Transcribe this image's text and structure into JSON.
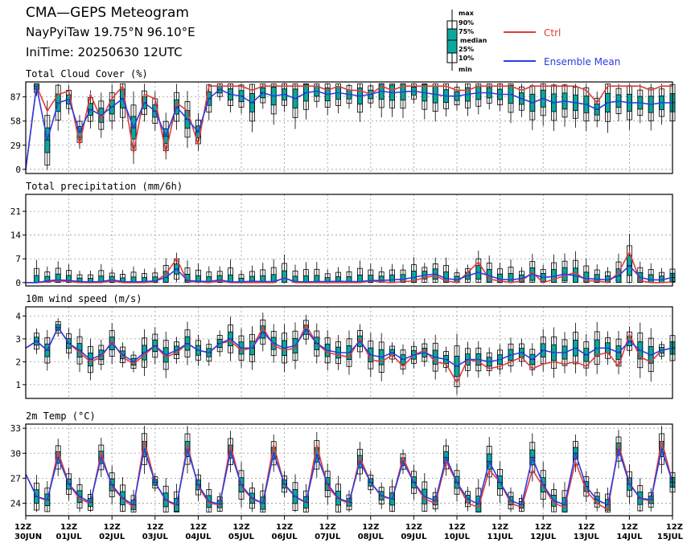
{
  "header": {
    "title": "CMA—GEPS Meteogram",
    "location": "NayPyiTaw 19.75°N 96.10°E",
    "init": "IniTime: 20250630 12UTC"
  },
  "legend": {
    "box_labels": [
      "max",
      "90%",
      "75%",
      "median",
      "25%",
      "10%",
      "min"
    ],
    "ctrl": "Ctrl",
    "mean": "Ensemble Mean"
  },
  "colors": {
    "ctrl": "#e23b3b",
    "mean": "#2a3ee0",
    "box": "#0aa7a0",
    "grid": "#9a9a9a"
  },
  "x_ticks": {
    "hour": [
      "12Z",
      "12Z",
      "12Z",
      "12Z",
      "12Z",
      "12Z",
      "12Z",
      "12Z",
      "12Z",
      "12Z",
      "12Z",
      "12Z",
      "12Z",
      "12Z",
      "12Z",
      "12Z"
    ],
    "date": [
      "30JUN",
      "01JUL",
      "02JUL",
      "03JUL",
      "04JUL",
      "05JUL",
      "06JUL",
      "07JUL",
      "08JUL",
      "09JUL",
      "10JUL",
      "11JUL",
      "12JUL",
      "13JUL",
      "14JUL",
      "15JUL"
    ]
  },
  "chart_data": [
    {
      "type": "boxplot",
      "title": "Total Cloud Cover (%)",
      "ylim": [
        -5,
        105
      ],
      "yticks": [
        0,
        29,
        58,
        87
      ],
      "grid": true,
      "x_range_days": [
        0,
        15
      ],
      "ctrl": [
        0,
        100,
        70,
        90,
        94,
        30,
        90,
        60,
        85,
        100,
        20,
        90,
        85,
        20,
        80,
        70,
        30,
        100,
        100,
        100,
        100,
        95,
        100,
        100,
        100,
        100,
        100,
        100,
        95,
        100,
        95,
        95,
        90,
        100,
        95,
        100,
        100,
        100,
        100,
        100,
        95,
        95,
        100,
        100,
        100,
        100,
        95,
        100,
        100,
        100,
        100,
        100,
        95,
        80,
        100,
        100,
        100,
        100,
        95,
        100,
        100
      ],
      "mean": [
        0,
        100,
        35,
        80,
        84,
        45,
        72,
        65,
        75,
        85,
        50,
        80,
        70,
        40,
        75,
        60,
        45,
        85,
        96,
        90,
        88,
        80,
        92,
        88,
        90,
        85,
        92,
        94,
        90,
        92,
        90,
        88,
        90,
        94,
        92,
        93,
        94,
        92,
        90,
        88,
        88,
        90,
        92,
        92,
        90,
        90,
        85,
        80,
        85,
        80,
        82,
        80,
        78,
        72,
        80,
        82,
        80,
        80,
        78,
        80,
        80
      ]
    },
    {
      "type": "boxplot",
      "title": "Total precipitation (mm/6h)",
      "ylim": [
        -1,
        26
      ],
      "yticks": [
        0,
        7,
        14,
        21
      ],
      "grid": true,
      "x_range_days": [
        0,
        15
      ],
      "ctrl": [
        0,
        0,
        0.2,
        0.5,
        0.3,
        0,
        0,
        0,
        0.5,
        0,
        0,
        0,
        0.3,
        2.5,
        7,
        0.3,
        0.2,
        0,
        0.5,
        0,
        0,
        0,
        0,
        0,
        1.5,
        0,
        0,
        0,
        0,
        0,
        0,
        0,
        0.5,
        0.2,
        0,
        0.3,
        0.5,
        1.5,
        2,
        0.5,
        0,
        3,
        6,
        1,
        0.5,
        0,
        0.5,
        3,
        0,
        1,
        2,
        3,
        0.5,
        0.5,
        0,
        3,
        9,
        0.5,
        0,
        0,
        0.2
      ],
      "mean": [
        0,
        0,
        0.5,
        0.8,
        0.6,
        0.3,
        0.2,
        0.3,
        0.8,
        0.3,
        0.2,
        0.3,
        0.5,
        1.5,
        4,
        0.6,
        0.4,
        0.3,
        0.8,
        0.2,
        0.2,
        0.4,
        0.3,
        0.3,
        1.3,
        0.3,
        0.2,
        0.3,
        0.3,
        0.4,
        0.3,
        0.3,
        0.6,
        0.6,
        0.8,
        1,
        1.5,
        2.2,
        2.5,
        1.2,
        0.8,
        2,
        3,
        2,
        1,
        0.8,
        1.2,
        2.5,
        1.5,
        1.8,
        2.5,
        2,
        1.2,
        1,
        0.8,
        2,
        5,
        1.5,
        0.8,
        0.8,
        1.5
      ]
    },
    {
      "type": "boxplot",
      "title": "10m wind speed (m/s)",
      "ylim": [
        0.4,
        4.4
      ],
      "yticks": [
        1,
        2,
        3,
        4
      ],
      "grid": true,
      "x_range_days": [
        0,
        15
      ],
      "ctrl": [
        2.6,
        2.9,
        2.5,
        3.5,
        2.8,
        2.4,
        2.0,
        2.2,
        2.9,
        2.2,
        1.9,
        2.3,
        2.7,
        2.2,
        2.4,
        2.8,
        2.5,
        2.4,
        2.8,
        2.9,
        2.5,
        2.6,
        3.5,
        2.7,
        2.5,
        2.6,
        3.6,
        2.8,
        2.4,
        2.3,
        2.2,
        3.0,
        2.1,
        2.0,
        2.3,
        1.8,
        2.3,
        2.5,
        2.0,
        1.9,
        1.1,
        2.1,
        2.0,
        1.7,
        1.8,
        2.0,
        2.2,
        1.7,
        1.9,
        2.0,
        1.9,
        2.0,
        1.8,
        2.3,
        2.4,
        1.8,
        3.2,
        2.2,
        2.0,
        2.5,
        2.6
      ],
      "mean": [
        2.6,
        2.9,
        2.5,
        3.5,
        2.8,
        2.5,
        2.1,
        2.3,
        2.8,
        2.3,
        2.0,
        2.4,
        2.7,
        2.3,
        2.5,
        2.8,
        2.5,
        2.4,
        2.8,
        3.0,
        2.6,
        2.6,
        3.3,
        2.8,
        2.6,
        2.7,
        3.4,
        2.8,
        2.5,
        2.4,
        2.4,
        2.9,
        2.3,
        2.2,
        2.4,
        2.1,
        2.3,
        2.4,
        2.2,
        2.1,
        1.8,
        2.1,
        2.1,
        2.0,
        2.1,
        2.3,
        2.4,
        2.1,
        2.5,
        2.4,
        2.4,
        2.6,
        2.3,
        2.6,
        2.6,
        2.4,
        2.9,
        2.5,
        2.3,
        2.5,
        2.6
      ]
    },
    {
      "type": "boxplot",
      "title": "2m Temp (°C)",
      "ylim": [
        22.5,
        33.5
      ],
      "yticks": [
        24,
        27,
        30,
        33
      ],
      "grid": true,
      "x_range_days": [
        0,
        15
      ],
      "ctrl": [
        27.5,
        24.8,
        24.3,
        30.2,
        26.3,
        24.5,
        24.0,
        30.0,
        26.0,
        24.5,
        23.5,
        31.5,
        26.5,
        24.3,
        23.7,
        31.0,
        26.0,
        24.0,
        23.8,
        31.0,
        26.0,
        24.5,
        24.0,
        31.0,
        26.2,
        24.8,
        24.0,
        31.0,
        26.0,
        24.5,
        24.0,
        29.5,
        26.5,
        24.8,
        24.5,
        29.5,
        26.5,
        24.5,
        24.0,
        29.0,
        26.5,
        24.0,
        23.5,
        28.0,
        26.5,
        24.0,
        23.5,
        28.0,
        26.0,
        24.0,
        23.5,
        29.0,
        25.5,
        24.0,
        23.2,
        31.0,
        26.5,
        24.5,
        24.3,
        31.5,
        26.5
      ],
      "mean": [
        27.5,
        24.8,
        24.4,
        29.5,
        26.3,
        24.8,
        24.1,
        29.5,
        26.2,
        24.6,
        23.8,
        30.5,
        26.5,
        24.4,
        23.8,
        30.5,
        26.2,
        24.2,
        23.9,
        30.2,
        26.2,
        24.6,
        24.0,
        30.0,
        26.3,
        24.8,
        24.1,
        29.8,
        26.3,
        24.6,
        24.1,
        29.0,
        26.5,
        24.9,
        24.5,
        29.0,
        26.5,
        24.8,
        24.3,
        29.5,
        26.5,
        24.5,
        23.9,
        29.0,
        26.5,
        24.3,
        23.8,
        29.5,
        26.2,
        24.3,
        23.8,
        30.0,
        26.0,
        24.4,
        23.8,
        30.5,
        26.3,
        24.6,
        24.4,
        30.5,
        26.5
      ]
    }
  ]
}
